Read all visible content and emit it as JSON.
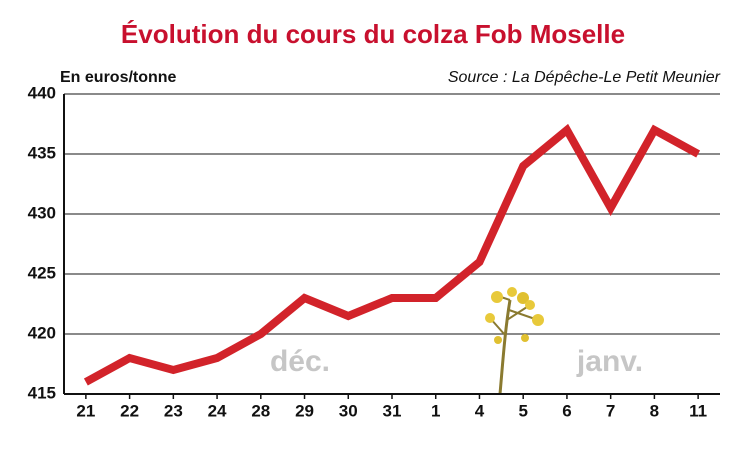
{
  "chart_data": {
    "type": "line",
    "title": "Évolution du cours du colza Fob Moselle",
    "y_label": "En euros/tonne",
    "source": "Source : La Dépêche-Le Petit Meunier",
    "annotations": [
      "déc.",
      "janv."
    ],
    "categories": [
      "21",
      "22",
      "23",
      "24",
      "28",
      "29",
      "30",
      "31",
      "1",
      "4",
      "5",
      "6",
      "7",
      "8",
      "11"
    ],
    "values": [
      416,
      418,
      417,
      418,
      420,
      423,
      421.5,
      423,
      423,
      426,
      434,
      437,
      430.5,
      437,
      435
    ],
    "color": "#d2232a",
    "ylim": [
      415,
      440
    ],
    "yticks": [
      415,
      420,
      425,
      430,
      435,
      440
    ],
    "grid": true
  }
}
